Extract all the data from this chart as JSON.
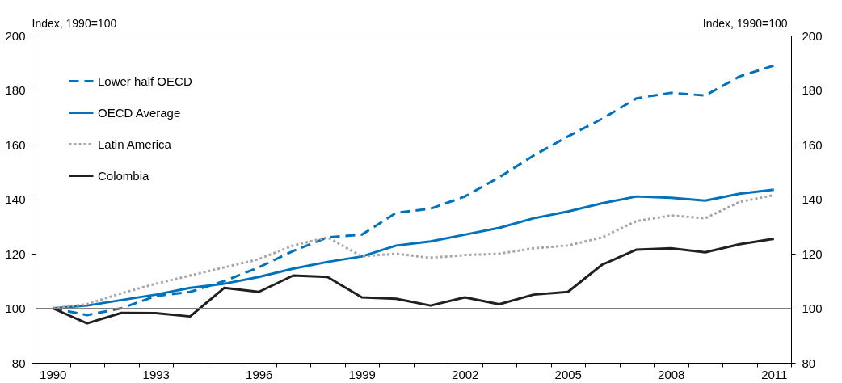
{
  "chart_data": {
    "type": "line",
    "ylabel": "Index, 1990=100",
    "y2label": "Index, 1990=100",
    "categories": [
      "1990",
      null,
      null,
      "1993",
      null,
      null,
      "1996",
      null,
      null,
      "1999",
      null,
      null,
      "2002",
      null,
      null,
      "2005",
      null,
      null,
      "2008",
      null,
      null,
      "2011"
    ],
    "series": [
      {
        "name": "Lower half OECD",
        "color": "#0072bc",
        "line_style": "dashed",
        "values": [
          100,
          97.5,
          100,
          104.5,
          106,
          110,
          115,
          121,
          126,
          127,
          135,
          136.5,
          141,
          148,
          156,
          163,
          169.5,
          177,
          179,
          178,
          185,
          189
        ]
      },
      {
        "name": "OECD Average",
        "color": "#0072bc",
        "line_style": "solid",
        "values": [
          100,
          101,
          103,
          105,
          107.5,
          109,
          111.5,
          114.5,
          117,
          119,
          123,
          124.5,
          127,
          129.5,
          133,
          135.5,
          138.5,
          141,
          140.5,
          139.5,
          142,
          143.5
        ]
      },
      {
        "name": "Latin America",
        "color": "#a6a6a6",
        "line_style": "dotted",
        "values": [
          100,
          101.5,
          105.5,
          109,
          112,
          115,
          118,
          123,
          126,
          119,
          120,
          118.5,
          119.5,
          120,
          122,
          123,
          126,
          132,
          134,
          133,
          139,
          141.5
        ]
      },
      {
        "name": "Colombia",
        "color": "#231f20",
        "line_style": "solid",
        "values": [
          100,
          94.5,
          98.3,
          98.2,
          97,
          107.5,
          106,
          112,
          111.5,
          104,
          103.5,
          101,
          104,
          101.5,
          105,
          106,
          116,
          121.5,
          122,
          120.5,
          123.5,
          125.5
        ]
      }
    ],
    "ylim": [
      80,
      200
    ],
    "yticks": [
      80,
      100,
      120,
      140,
      160,
      180,
      200
    ],
    "y2lim": [
      80,
      200
    ],
    "y2ticks": [
      80,
      100,
      120,
      140,
      160,
      180,
      200
    ],
    "ref_lines": [
      {
        "axis": "y",
        "value": 100,
        "color": "#808080"
      }
    ],
    "legend": "top left",
    "grid": false
  }
}
